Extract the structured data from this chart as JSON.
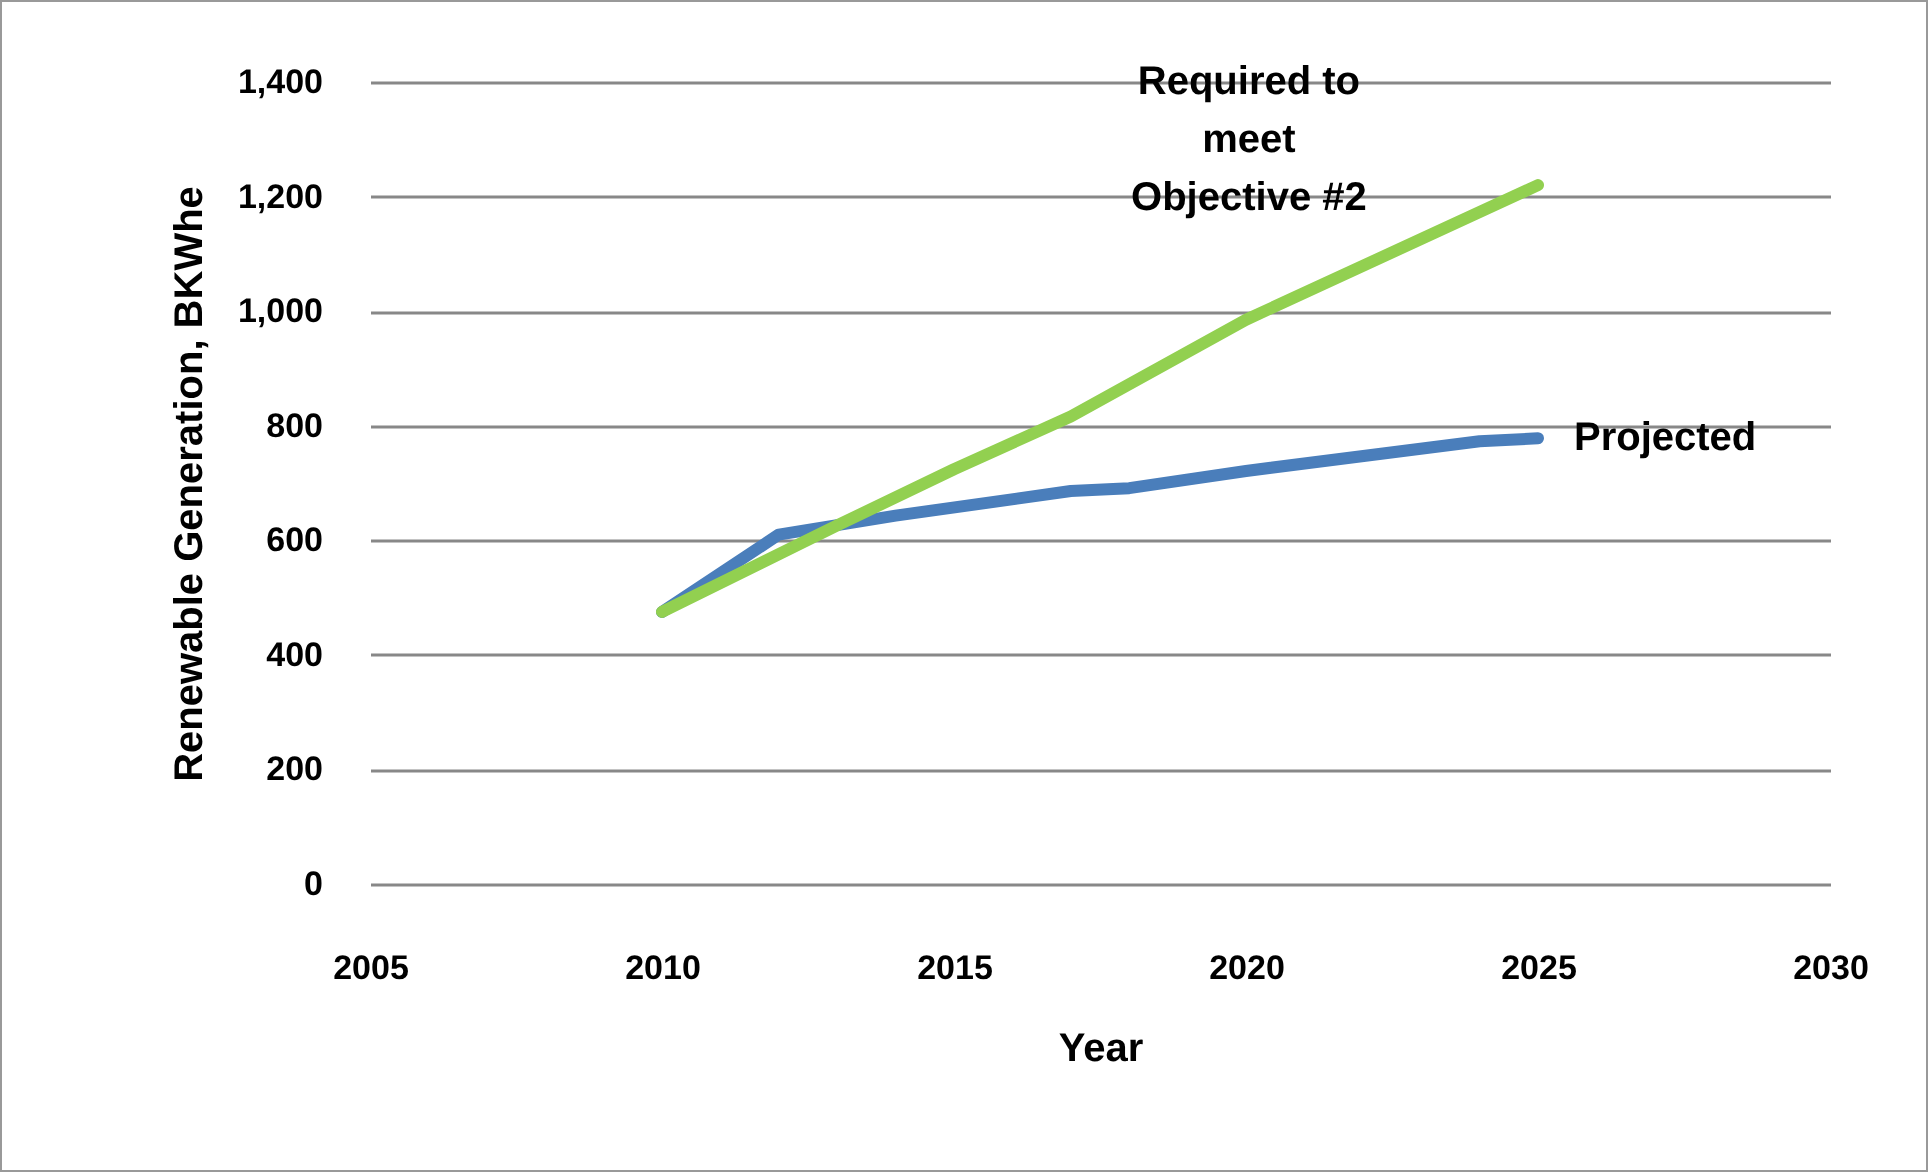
{
  "chart_data": {
    "type": "line",
    "xlabel": "Year",
    "ylabel": "Renewable Generation, BKWhe",
    "xlim": [
      2005,
      2030
    ],
    "xticks": [
      2005,
      2010,
      2015,
      2020,
      2025,
      2030
    ],
    "ylim": [
      0,
      1400
    ],
    "yticks": [
      0,
      {
        "value": 200,
        "label": "200"
      },
      {
        "value": 400,
        "label": "400"
      },
      {
        "value": 600,
        "label": "600"
      },
      {
        "value": 800,
        "label": "800"
      },
      {
        "value": 1000,
        "label": "1,000"
      },
      {
        "value": 1200,
        "label": "1,200"
      },
      {
        "value": 1400,
        "label": "1,400"
      }
    ],
    "grid": "y",
    "legend": false,
    "marker": "none",
    "line_style": "solid",
    "series": [
      {
        "name": "Projected",
        "color": "#4a7ebb",
        "x": [
          2010,
          2012,
          2014,
          2017,
          2018,
          2020,
          2024,
          2025
        ],
        "values": [
          475,
          610,
          643,
          686,
          691,
          721,
          773,
          778
        ]
      },
      {
        "name": "Required to meet Objective #2",
        "color": "#92d050",
        "x": [
          2010,
          2013,
          2015,
          2017,
          2020,
          2025
        ],
        "values": [
          475,
          626,
          724,
          816,
          985,
          1220
        ]
      }
    ]
  }
}
